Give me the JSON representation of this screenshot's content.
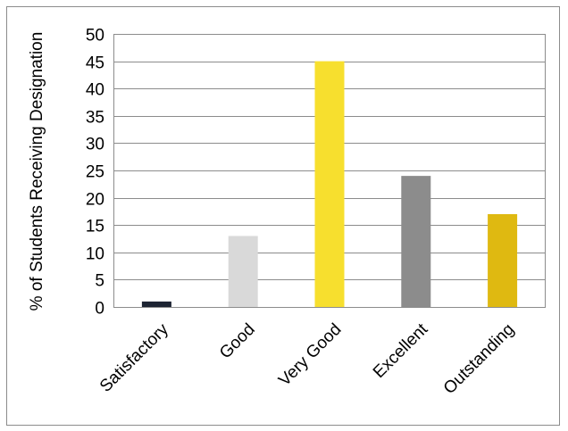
{
  "chart_data": {
    "type": "bar",
    "title": "",
    "xlabel": "",
    "ylabel": "% of Students Receiving Designation",
    "categories": [
      "Satisfactory",
      "Good",
      "Very Good",
      "Excellent",
      "Outstanding"
    ],
    "values": [
      1,
      13,
      45,
      24,
      17
    ],
    "colors": [
      "#1d2433",
      "#d9d9d9",
      "#f7df2e",
      "#8c8c8c",
      "#dfb911"
    ],
    "ylim": [
      0,
      50
    ],
    "yticks": [
      0,
      5,
      10,
      15,
      20,
      25,
      30,
      35,
      40,
      45,
      50
    ],
    "ytick_labels": [
      "0",
      "5",
      "10",
      "15",
      "20",
      "25",
      "30",
      "35",
      "40",
      "45",
      "50"
    ],
    "grid": true,
    "legend": "none"
  }
}
